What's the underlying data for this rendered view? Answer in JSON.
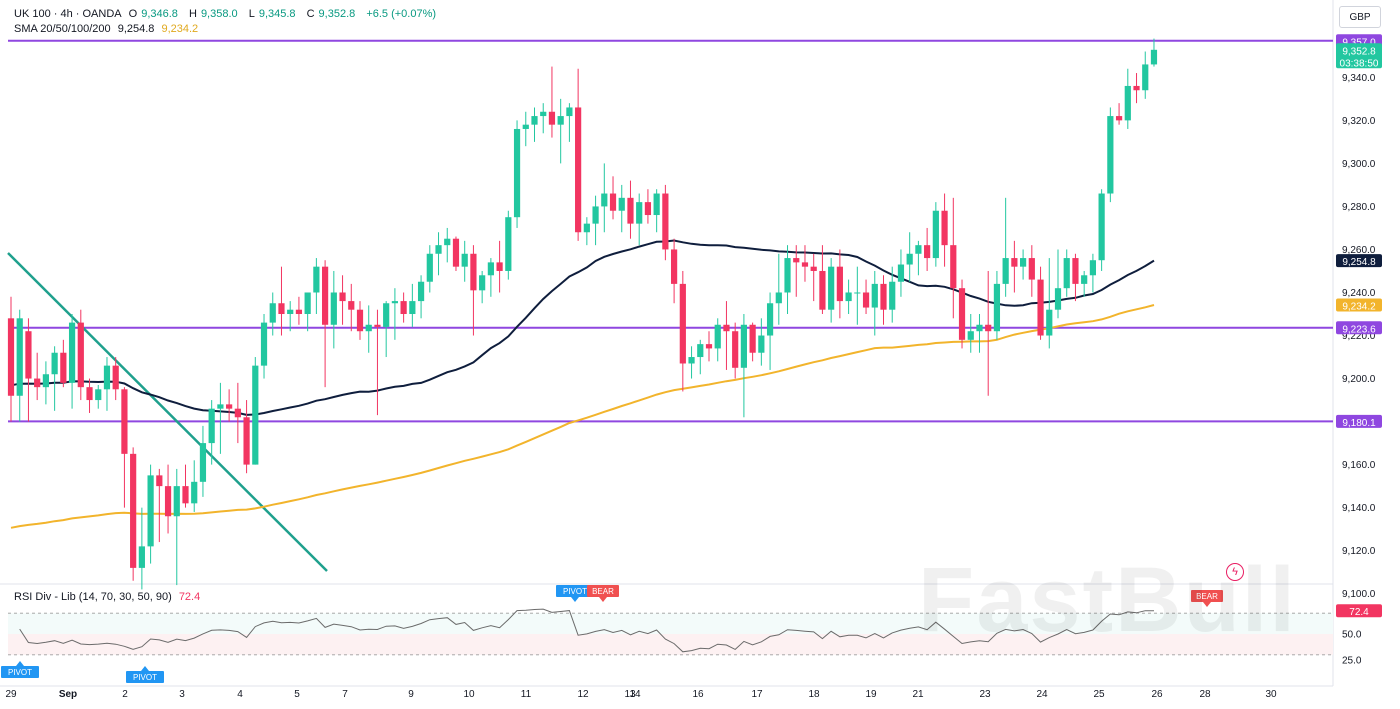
{
  "header": {
    "symbol": "UK 100 · 4h · OANDA",
    "open_label": "O",
    "open": "9,346.8",
    "high_label": "H",
    "high": "9,358.0",
    "low_label": "L",
    "low": "9,345.8",
    "close_label": "C",
    "close": "9,352.8",
    "change": "+6.5 (+0.07%)",
    "sma_label": "SMA 20/50/100/200",
    "sma_a": "9,254.8",
    "sma_b": "9,234.2"
  },
  "currency": "GBP",
  "price_tags": {
    "current_price": "9,352.8",
    "countdown": "03:38:50",
    "line_9357": "9,357.0",
    "line_9223": "9,223.6",
    "line_9180": "9,180.1",
    "sma_a": "9,254.8",
    "sma_b": "9,234.2",
    "rsi": "72.4"
  },
  "rsi_panel": {
    "label": "RSI Div - Lib (14, 70, 30, 50, 90)",
    "value": "72.4",
    "levels": [
      "50.0",
      "25.0"
    ],
    "markers": [
      "PIVOT",
      "PIVOT",
      "PIVOT",
      "BEAR",
      "BEAR"
    ]
  },
  "watermark": "FastBull",
  "colors": {
    "up": "#22c7a0",
    "down": "#f23561",
    "sma_a": "#0f1e3d",
    "sma_b": "#f2b42c",
    "hline": "#8f47e0",
    "trend": "#1fa08d",
    "rsi": "#6b6b6b",
    "rsi_bear": "#f08080",
    "pivot": "#2196f3",
    "bear": "#f05050"
  },
  "chart_data": {
    "type": "candlestick",
    "y_ticks": [
      "9,340.0",
      "9,320.0",
      "9,300.0",
      "9,280.0",
      "9,260.0",
      "9,240.0",
      "9,220.0",
      "9,200.0",
      "9,160.0",
      "9,140.0",
      "9,120.0",
      "9,100.0"
    ],
    "x_ticks": [
      "29",
      "Sep",
      "2",
      "3",
      "4",
      "5",
      "7",
      "9",
      "10",
      "11",
      "12",
      "13",
      "14",
      "16",
      "17",
      "18",
      "19",
      "21",
      "23",
      "24",
      "25",
      "26",
      "28",
      "30"
    ],
    "ylim": [
      9097,
      9377
    ],
    "horizontal_levels": [
      9357.0,
      9223.6,
      9180.1
    ],
    "candles": [
      [
        9228,
        9238,
        9180,
        9192
      ],
      [
        9192,
        9232,
        9180,
        9228
      ],
      [
        9222,
        9228,
        9180,
        9200
      ],
      [
        9200,
        9212,
        9190,
        9196
      ],
      [
        9196,
        9208,
        9188,
        9202
      ],
      [
        9202,
        9215,
        9185,
        9212
      ],
      [
        9212,
        9218,
        9196,
        9198
      ],
      [
        9198,
        9230,
        9186,
        9226
      ],
      [
        9226,
        9232,
        9190,
        9196
      ],
      [
        9196,
        9200,
        9184,
        9190
      ],
      [
        9190,
        9197,
        9186,
        9195
      ],
      [
        9195,
        9210,
        9185,
        9206
      ],
      [
        9206,
        9210,
        9190,
        9195
      ],
      [
        9195,
        9196,
        9140,
        9165
      ],
      [
        9165,
        9168,
        9106,
        9112
      ],
      [
        9112,
        9140,
        9102,
        9122
      ],
      [
        9122,
        9160,
        9114,
        9155
      ],
      [
        9155,
        9158,
        9124,
        9150
      ],
      [
        9150,
        9160,
        9128,
        9136
      ],
      [
        9136,
        9158,
        9104,
        9150
      ],
      [
        9150,
        9160,
        9140,
        9142
      ],
      [
        9142,
        9162,
        9138,
        9152
      ],
      [
        9152,
        9178,
        9145,
        9170
      ],
      [
        9170,
        9190,
        9160,
        9186
      ],
      [
        9186,
        9198,
        9165,
        9188
      ],
      [
        9188,
        9195,
        9180,
        9186
      ],
      [
        9186,
        9198,
        9170,
        9182
      ],
      [
        9182,
        9190,
        9156,
        9160
      ],
      [
        9160,
        9210,
        9160,
        9206
      ],
      [
        9206,
        9230,
        9200,
        9226
      ],
      [
        9226,
        9240,
        9220,
        9235
      ],
      [
        9235,
        9252,
        9220,
        9230
      ],
      [
        9230,
        9236,
        9222,
        9232
      ],
      [
        9232,
        9238,
        9225,
        9230
      ],
      [
        9230,
        9240,
        9222,
        9240
      ],
      [
        9240,
        9256,
        9230,
        9252
      ],
      [
        9252,
        9255,
        9196,
        9225
      ],
      [
        9225,
        9250,
        9214,
        9240
      ],
      [
        9240,
        9248,
        9225,
        9236
      ],
      [
        9236,
        9244,
        9222,
        9232
      ],
      [
        9232,
        9236,
        9218,
        9222
      ],
      [
        9222,
        9234,
        9212,
        9225
      ],
      [
        9225,
        9232,
        9183,
        9224
      ],
      [
        9224,
        9236,
        9210,
        9235
      ],
      [
        9235,
        9242,
        9218,
        9236
      ],
      [
        9236,
        9240,
        9226,
        9230
      ],
      [
        9230,
        9244,
        9224,
        9236
      ],
      [
        9236,
        9248,
        9228,
        9245
      ],
      [
        9245,
        9262,
        9240,
        9258
      ],
      [
        9258,
        9268,
        9248,
        9262
      ],
      [
        9262,
        9270,
        9254,
        9265
      ],
      [
        9265,
        9266,
        9250,
        9252
      ],
      [
        9252,
        9264,
        9245,
        9258
      ],
      [
        9258,
        9262,
        9220,
        9241
      ],
      [
        9241,
        9250,
        9235,
        9248
      ],
      [
        9248,
        9256,
        9238,
        9254
      ],
      [
        9254,
        9264,
        9240,
        9250
      ],
      [
        9250,
        9278,
        9246,
        9275
      ],
      [
        9275,
        9320,
        9270,
        9316
      ],
      [
        9316,
        9324,
        9308,
        9318
      ],
      [
        9318,
        9326,
        9310,
        9322
      ],
      [
        9322,
        9328,
        9314,
        9324
      ],
      [
        9324,
        9345,
        9312,
        9318
      ],
      [
        9318,
        9330,
        9300,
        9322
      ],
      [
        9322,
        9328,
        9310,
        9326
      ],
      [
        9326,
        9344,
        9264,
        9268
      ],
      [
        9268,
        9275,
        9262,
        9272
      ],
      [
        9272,
        9285,
        9262,
        9280
      ],
      [
        9280,
        9300,
        9268,
        9286
      ],
      [
        9286,
        9294,
        9274,
        9278
      ],
      [
        9278,
        9290,
        9268,
        9284
      ],
      [
        9284,
        9292,
        9265,
        9272
      ],
      [
        9272,
        9286,
        9262,
        9282
      ],
      [
        9282,
        9288,
        9272,
        9276
      ],
      [
        9276,
        9288,
        9268,
        9286
      ],
      [
        9286,
        9290,
        9255,
        9260
      ],
      [
        9260,
        9265,
        9235,
        9244
      ],
      [
        9244,
        9250,
        9194,
        9207
      ],
      [
        9207,
        9215,
        9200,
        9210
      ],
      [
        9210,
        9218,
        9202,
        9216
      ],
      [
        9216,
        9222,
        9208,
        9214
      ],
      [
        9214,
        9228,
        9208,
        9225
      ],
      [
        9225,
        9236,
        9204,
        9222
      ],
      [
        9222,
        9226,
        9200,
        9205
      ],
      [
        9205,
        9230,
        9182,
        9225
      ],
      [
        9225,
        9226,
        9208,
        9212
      ],
      [
        9212,
        9228,
        9206,
        9220
      ],
      [
        9220,
        9240,
        9204,
        9235
      ],
      [
        9235,
        9258,
        9225,
        9240
      ],
      [
        9240,
        9262,
        9230,
        9256
      ],
      [
        9256,
        9262,
        9238,
        9254
      ],
      [
        9254,
        9262,
        9245,
        9252
      ],
      [
        9252,
        9258,
        9236,
        9250
      ],
      [
        9250,
        9262,
        9230,
        9232
      ],
      [
        9232,
        9256,
        9226,
        9252
      ],
      [
        9252,
        9260,
        9228,
        9236
      ],
      [
        9236,
        9246,
        9230,
        9240
      ],
      [
        9240,
        9252,
        9225,
        9240
      ],
      [
        9240,
        9246,
        9230,
        9233
      ],
      [
        9233,
        9250,
        9220,
        9244
      ],
      [
        9244,
        9248,
        9225,
        9232
      ],
      [
        9232,
        9252,
        9226,
        9245
      ],
      [
        9245,
        9260,
        9238,
        9253
      ],
      [
        9253,
        9268,
        9245,
        9258
      ],
      [
        9258,
        9264,
        9248,
        9262
      ],
      [
        9262,
        9270,
        9250,
        9256
      ],
      [
        9256,
        9282,
        9252,
        9278
      ],
      [
        9278,
        9286,
        9252,
        9262
      ],
      [
        9262,
        9284,
        9228,
        9242
      ],
      [
        9242,
        9246,
        9214,
        9218
      ],
      [
        9218,
        9230,
        9212,
        9222
      ],
      [
        9222,
        9230,
        9212,
        9225
      ],
      [
        9225,
        9250,
        9192,
        9222
      ],
      [
        9222,
        9250,
        9218,
        9244
      ],
      [
        9244,
        9284,
        9238,
        9256
      ],
      [
        9256,
        9264,
        9240,
        9252
      ],
      [
        9252,
        9260,
        9246,
        9256
      ],
      [
        9256,
        9262,
        9238,
        9246
      ],
      [
        9246,
        9252,
        9218,
        9220
      ],
      [
        9220,
        9256,
        9214,
        9232
      ],
      [
        9232,
        9260,
        9228,
        9242
      ],
      [
        9242,
        9260,
        9238,
        9256
      ],
      [
        9256,
        9258,
        9236,
        9244
      ],
      [
        9244,
        9250,
        9238,
        9248
      ],
      [
        9248,
        9258,
        9240,
        9255
      ],
      [
        9255,
        9288,
        9250,
        9286
      ],
      [
        9286,
        9326,
        9282,
        9322
      ],
      [
        9322,
        9328,
        9318,
        9320
      ],
      [
        9320,
        9344,
        9316,
        9336
      ],
      [
        9336,
        9342,
        9328,
        9334
      ],
      [
        9334,
        9352,
        9330,
        9346
      ],
      [
        9346,
        9358,
        9345,
        9352.8
      ]
    ]
  }
}
